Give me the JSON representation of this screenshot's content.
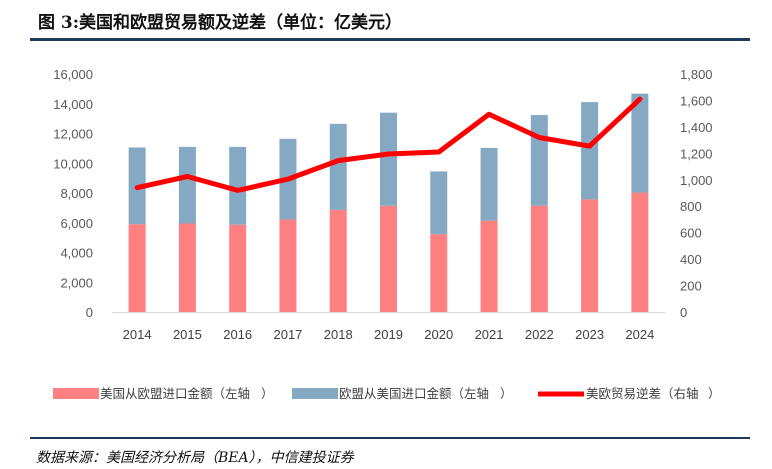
{
  "title": "图 3:美国和欧盟贸易额及逆差（单位：亿美元）",
  "source": "数据来源：美国经济分析局（BEA），中信建投证券",
  "chart_data": {
    "type": "bar",
    "categories": [
      "2014",
      "2015",
      "2016",
      "2017",
      "2018",
      "2019",
      "2020",
      "2021",
      "2022",
      "2023",
      "2024"
    ],
    "series": [
      {
        "name": "美国从欧盟进口金额（左轴",
        "axis": "left",
        "kind": "bar-stack",
        "color": "#ff8080",
        "values": [
          5900,
          5950,
          5870,
          6220,
          6860,
          7140,
          5230,
          6140,
          7150,
          7570,
          8030
        ]
      },
      {
        "name": "欧盟从美国进口金额（左轴",
        "axis": "left",
        "kind": "bar-stack",
        "color": "#86a9c3",
        "values": [
          5160,
          5150,
          5230,
          5420,
          5790,
          6260,
          4220,
          4890,
          6090,
          6540,
          6650
        ]
      },
      {
        "name": "美欧贸易逆差（右轴",
        "axis": "right",
        "kind": "line",
        "color": "#ff0000",
        "values": [
          940,
          1025,
          920,
          1005,
          1145,
          1195,
          1210,
          1495,
          1320,
          1255,
          1610
        ]
      }
    ],
    "y_left": {
      "min": 0,
      "max": 16000,
      "ticks": [
        "0",
        "2,000",
        "4,000",
        "6,000",
        "8,000",
        "10,000",
        "12,000",
        "14,000",
        "16,000"
      ]
    },
    "y_right": {
      "min": 0,
      "max": 1800,
      "ticks": [
        "0",
        "200",
        "400",
        "600",
        "800",
        "1,000",
        "1,200",
        "1,400",
        "1,600",
        "1,800"
      ]
    },
    "grid": false,
    "legend": "bottom"
  }
}
